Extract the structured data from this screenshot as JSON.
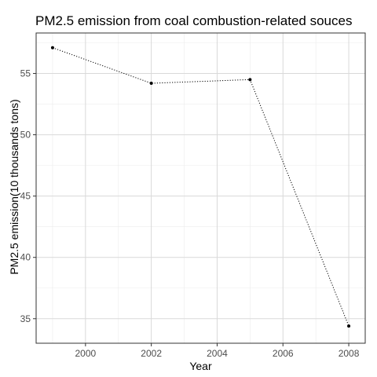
{
  "chart_data": {
    "type": "line",
    "title": "PM2.5 emission from coal combustion-related souces",
    "xlabel": "Year",
    "ylabel": "PM2.5 emission(10 thousands tons)",
    "x": [
      1999,
      2002,
      2005,
      2008
    ],
    "series": [
      {
        "values": [
          57.1,
          54.2,
          54.5,
          34.4
        ]
      }
    ],
    "xlim": [
      1998.5,
      2008.5
    ],
    "ylim": [
      33.0,
      58.3
    ],
    "xticks": [
      2000,
      2002,
      2004,
      2006,
      2008
    ],
    "yticks": [
      35,
      40,
      45,
      50,
      55
    ],
    "grid": true,
    "line_style": "dotted",
    "colors": {
      "panel_border": "#333333",
      "grid_major": "#d9d9d9",
      "grid_minor": "#ececec",
      "line": "#000000",
      "points": "#000000"
    }
  }
}
